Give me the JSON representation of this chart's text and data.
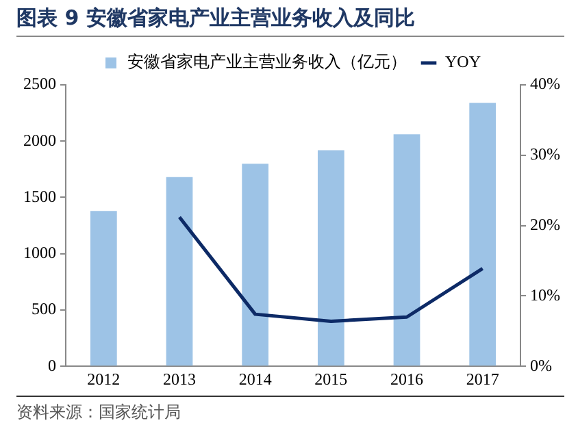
{
  "chart_data": {
    "type": "bar",
    "title": "图表 9 安徽省家电产业主营业务收入及同比",
    "categories": [
      "2012",
      "2013",
      "2014",
      "2015",
      "2016",
      "2017"
    ],
    "series": [
      {
        "name": "安徽省家电产业主营业务收入（亿元）",
        "color": "#9dc3e6",
        "values": [
          1380,
          1680,
          1800,
          1920,
          2060,
          2340
        ]
      },
      {
        "name": "YOY",
        "type": "line",
        "axis": "y2",
        "color": "#0d2a66",
        "marker": "none",
        "values": [
          null,
          21.2,
          7.4,
          6.4,
          7.0,
          13.9
        ]
      }
    ],
    "ylim": [
      0,
      2500
    ],
    "yticks": [
      0,
      500,
      1000,
      1500,
      2000,
      2500
    ],
    "y2lim": [
      0,
      40
    ],
    "y2ticks": [
      {
        "value": 0,
        "label": "0%"
      },
      {
        "value": 10,
        "label": "10%"
      },
      {
        "value": 20,
        "label": "20%"
      },
      {
        "value": 30,
        "label": "30%"
      },
      {
        "value": 40,
        "label": "40%"
      }
    ],
    "grid": false,
    "legend": "top",
    "annotations": [
      "资料来源：国家统计局"
    ]
  }
}
